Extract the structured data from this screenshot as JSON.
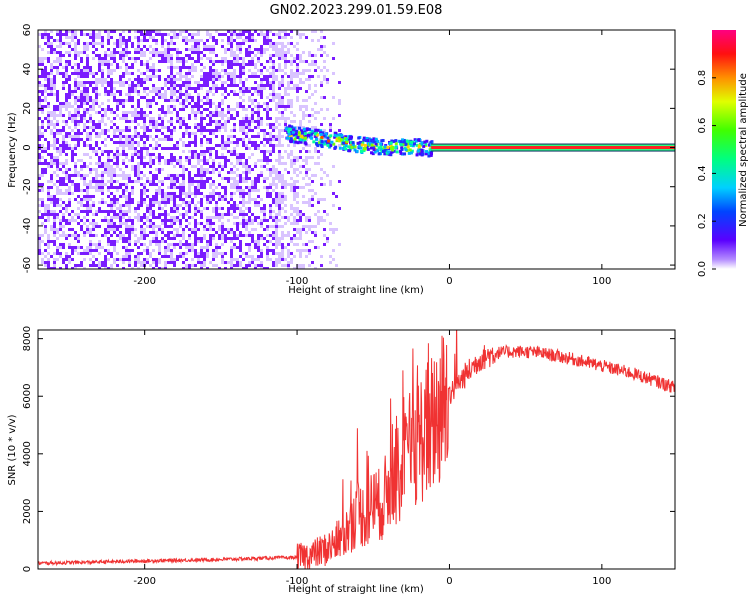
{
  "title": "GN02.2023.299.01.59.E08",
  "colors": {
    "noise": "#7a1cff",
    "noise_faint": "#d9c4ff",
    "snr_line": "#f03232",
    "center_line": "#ff2020",
    "axis": "#000000"
  },
  "chart_data": [
    {
      "type": "heatmap",
      "title": "GN02.2023.299.01.59.E08",
      "xlabel": "Height of straight line (km)",
      "ylabel": "Frequency (Hz)",
      "xlim": [
        -270,
        148
      ],
      "ylim": [
        -62,
        60
      ],
      "x_ticks": [
        -200,
        -100,
        0,
        100
      ],
      "y_ticks": [
        -60,
        -40,
        -20,
        0,
        20,
        40,
        60
      ],
      "x_tick_labels": [
        "-200",
        "-100",
        "0",
        "100"
      ],
      "y_tick_labels": [
        "-60",
        "-40",
        "-20",
        "0",
        "20",
        "40",
        "60"
      ],
      "colorbar": {
        "label": "Normalized spectral amplitude",
        "range": [
          0,
          1
        ],
        "ticks": [
          0.0,
          0.2,
          0.4,
          0.6,
          0.8
        ],
        "tick_labels": [
          "0.0",
          "0.2",
          "0.4",
          "0.6",
          "0.8"
        ],
        "colormap": "hsv"
      },
      "features": {
        "noise_region_x": [
          -270,
          -72
        ],
        "signal_track": {
          "x": [
            -108,
            -90,
            -60,
            -40,
            -20,
            -12,
            148
          ],
          "freq": [
            8,
            6,
            2,
            1,
            1,
            0,
            0
          ]
        },
        "pure_tone_x": [
          -12,
          148
        ],
        "pure_tone_freq": 0
      }
    },
    {
      "type": "line",
      "xlabel": "Height of straight line (km)",
      "ylabel": "SNR (10 * v/v)",
      "xlim": [
        -270,
        148
      ],
      "ylim": [
        0,
        8300
      ],
      "x_ticks": [
        -200,
        -100,
        0,
        100
      ],
      "y_ticks": [
        0,
        2000,
        4000,
        6000,
        8000
      ],
      "x_tick_labels": [
        "-200",
        "-100",
        "0",
        "100"
      ],
      "y_tick_labels": [
        "0",
        "2000",
        "4000",
        "6000",
        "8000"
      ],
      "series": [
        {
          "x": [
            -270,
            -250,
            -200,
            -150,
            -120,
            -100,
            -90,
            -80,
            -70,
            -65,
            -60,
            -55,
            -50,
            -45,
            -40,
            -35,
            -30,
            -25,
            -20,
            -15,
            -10,
            -5,
            0,
            10,
            20,
            30,
            40,
            50,
            60,
            80,
            100,
            120,
            148
          ],
          "values": [
            200,
            220,
            280,
            330,
            380,
            400,
            500,
            700,
            1100,
            1500,
            2000,
            1800,
            2300,
            2200,
            2800,
            3200,
            3500,
            4200,
            4500,
            4800,
            5200,
            5600,
            6100,
            6700,
            7300,
            7500,
            7550,
            7550,
            7500,
            7300,
            7050,
            6800,
            6300
          ]
        }
      ]
    }
  ]
}
